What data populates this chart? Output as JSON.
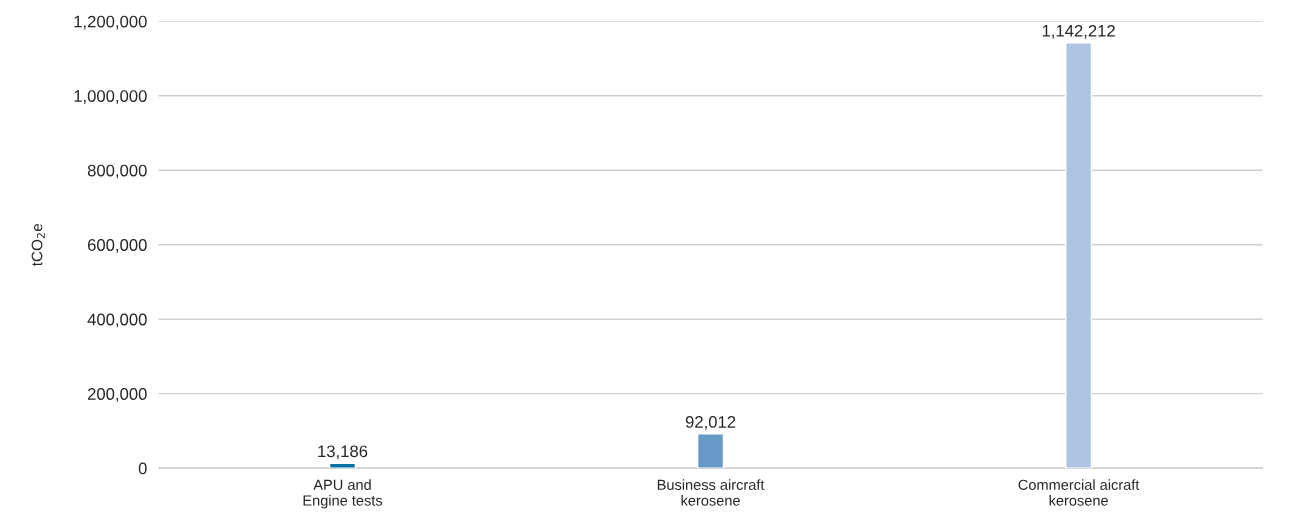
{
  "chart_data": {
    "type": "bar",
    "categories": [
      "APU and\nEngine tests",
      "Business aircraft\nkerosene",
      "Commercial aicraft\nkerosene"
    ],
    "values": [
      13186,
      92012,
      1142212
    ],
    "colors": [
      "#0b6fa4",
      "#6699c6",
      "#adc5e2"
    ],
    "ylabel": "tCO$_{2}$e",
    "ylim": [
      0,
      1200000
    ],
    "yticks": [
      {
        "value": 0,
        "label": "0"
      },
      {
        "value": 200000,
        "label": "200,000"
      },
      {
        "value": 400000,
        "label": "400,000"
      },
      {
        "value": 600000,
        "label": "600,000"
      },
      {
        "value": 800000,
        "label": "800,000"
      },
      {
        "value": 1000000,
        "label": "1,000,000"
      },
      {
        "value": 1200000,
        "label": "1,200,000"
      }
    ],
    "grid": "y",
    "value_labels": [
      "13,186",
      "92,012",
      "1,142,212"
    ]
  }
}
